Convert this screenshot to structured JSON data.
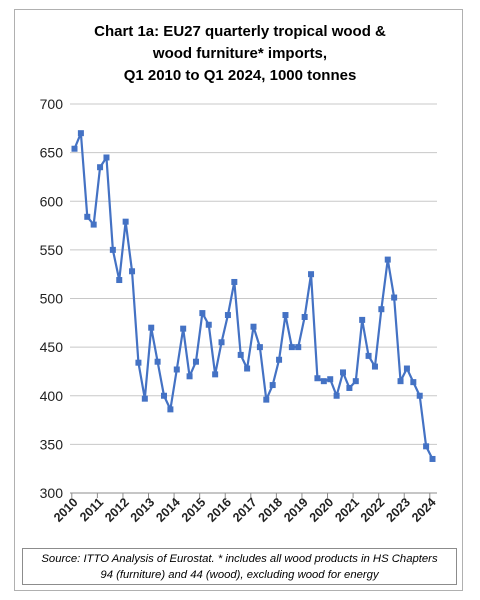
{
  "chart_data": {
    "type": "line",
    "title_lines": [
      "Chart 1a: EU27 quarterly tropical wood &",
      "wood furniture* imports,",
      "Q1 2010 to Q1 2024, 1000 tonnes"
    ],
    "xlabel": "",
    "ylabel": "",
    "ylim": [
      300,
      700
    ],
    "y_ticks": [
      "700",
      "650",
      "600",
      "550",
      "500",
      "450",
      "400",
      "350",
      "300"
    ],
    "x_tick_labels": [
      "2010",
      "2011",
      "2012",
      "2013",
      "2014",
      "2015",
      "2016",
      "2017",
      "2018",
      "2019",
      "2020",
      "2021",
      "2022",
      "2023",
      "2024"
    ],
    "grid": "horizontal",
    "legend": "none",
    "line_color": "#4472C4",
    "series": [
      {
        "values": [
          654,
          670,
          584,
          576,
          635,
          645,
          550,
          519,
          579,
          528,
          434,
          397,
          470,
          435,
          400,
          386,
          427,
          469,
          420,
          435,
          485,
          473,
          422,
          455,
          483,
          517,
          442,
          428,
          471,
          450,
          396,
          411,
          437,
          483,
          450,
          450,
          481,
          525,
          418,
          415,
          417,
          400,
          424,
          408,
          415,
          478,
          441,
          430,
          489,
          540,
          501,
          415,
          428,
          414,
          400,
          348,
          335
        ]
      }
    ]
  },
  "source_lines": [
    "Source: ITTO Analysis of Eurostat. * includes all wood products in HS Chapters",
    "94 (furniture) and 44 (wood), excluding wood for energy"
  ]
}
